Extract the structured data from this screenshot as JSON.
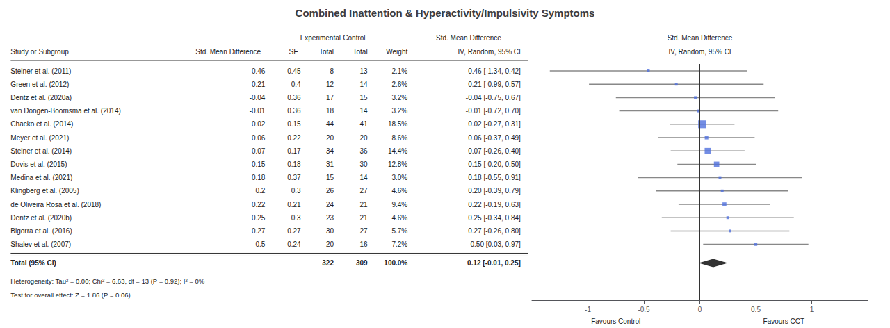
{
  "chart_data": {
    "type": "forest",
    "title": "Combined Inattention & Hyperactivity/Impulsivity Symptoms",
    "header_top": [
      "Experimental",
      "Control",
      "Std. Mean Difference",
      "Std. Mean Difference"
    ],
    "column_headers": [
      "Study or Subgroup",
      "Std. Mean Difference",
      "SE",
      "Total",
      "Total",
      "Weight",
      "IV, Random, 95% CI",
      "IV, Random, 95% CI"
    ],
    "categories": [
      "Steiner et al. (2011)",
      "Green et al. (2012)",
      "Dentz et al. (2020a)",
      "van Dongen-Boomsma et al. (2014)",
      "Chacko et al. (2014)",
      "Meyer et al. (2021)",
      "Steiner et al. (2014)",
      "Dovis et al. (2015)",
      "Medina et al. (2021)",
      "Klingberg et al. (2005)",
      "de Oliveira Rosa et al. (2018)",
      "Dentz et al. (2020b)",
      "Bigorra et al. (2016)",
      "Shalev et al. (2007)"
    ],
    "values": [
      -0.46,
      -0.21,
      -0.04,
      -0.01,
      0.02,
      0.06,
      0.07,
      0.15,
      0.18,
      0.2,
      0.22,
      0.25,
      0.27,
      0.5
    ],
    "se": [
      0.45,
      0.4,
      0.36,
      0.36,
      0.15,
      0.22,
      0.17,
      0.18,
      0.37,
      0.3,
      0.21,
      0.3,
      0.27,
      0.24
    ],
    "exp_total": [
      8,
      12,
      17,
      18,
      44,
      20,
      34,
      31,
      15,
      26,
      24,
      23,
      30,
      20
    ],
    "ctrl_total": [
      13,
      14,
      15,
      14,
      41,
      20,
      36,
      30,
      14,
      27,
      21,
      21,
      27,
      16
    ],
    "weight": [
      2.1,
      2.6,
      3.2,
      3.2,
      18.5,
      8.6,
      14.4,
      12.8,
      3.0,
      4.6,
      9.4,
      4.6,
      5.7,
      7.2
    ],
    "weight_labels": [
      "2.1%",
      "2.6%",
      "3.2%",
      "3.2%",
      "18.5%",
      "8.6%",
      "14.4%",
      "12.8%",
      "3.0%",
      "4.6%",
      "9.4%",
      "4.6%",
      "5.7%",
      "7.2%"
    ],
    "ci_lo": [
      -1.34,
      -0.99,
      -0.75,
      -0.72,
      -0.27,
      -0.37,
      -0.26,
      -0.2,
      -0.55,
      -0.39,
      -0.19,
      -0.34,
      -0.26,
      0.03
    ],
    "ci_hi": [
      0.42,
      0.57,
      0.67,
      0.7,
      0.31,
      0.49,
      0.4,
      0.5,
      0.91,
      0.79,
      0.63,
      0.84,
      0.8,
      0.97
    ],
    "ci_labels": [
      "-0.46 [-1.34, 0.42]",
      "-0.21 [-0.99, 0.57]",
      "-0.04 [-0.75, 0.67]",
      "-0.01 [-0.72, 0.70]",
      "0.02 [-0.27, 0.31]",
      "0.06 [-0.37, 0.49]",
      "0.07 [-0.26, 0.40]",
      "0.15 [-0.20, 0.50]",
      "0.18 [-0.55, 0.91]",
      "0.20 [-0.39, 0.79]",
      "0.22 [-0.19, 0.63]",
      "0.25 [-0.34, 0.84]",
      "0.27 [-0.26, 0.80]",
      "0.50 [0.03, 0.97]"
    ],
    "total": {
      "label": "Total (95% CI)",
      "exp_total": 322,
      "ctrl_total": 309,
      "weight_label": "100.0%",
      "value": 0.12,
      "ci_lo": -0.01,
      "ci_hi": 0.25,
      "ci_label": "0.12 [-0.01, 0.25]"
    },
    "footnotes": [
      "Heterogeneity: Tau² = 0.00; Chi² = 6.63, df = 13 (P = 0.92); I² = 0%",
      "Test for overall effect: Z = 1.86 (P = 0.06)"
    ],
    "xlabel_left": "Favours Control",
    "xlabel_right": "Favours CCT",
    "xlim": [
      -1.5,
      1.5
    ],
    "xticks": [
      -1,
      -0.5,
      0,
      0.5,
      1
    ],
    "reference_line": 0,
    "grid": false
  }
}
